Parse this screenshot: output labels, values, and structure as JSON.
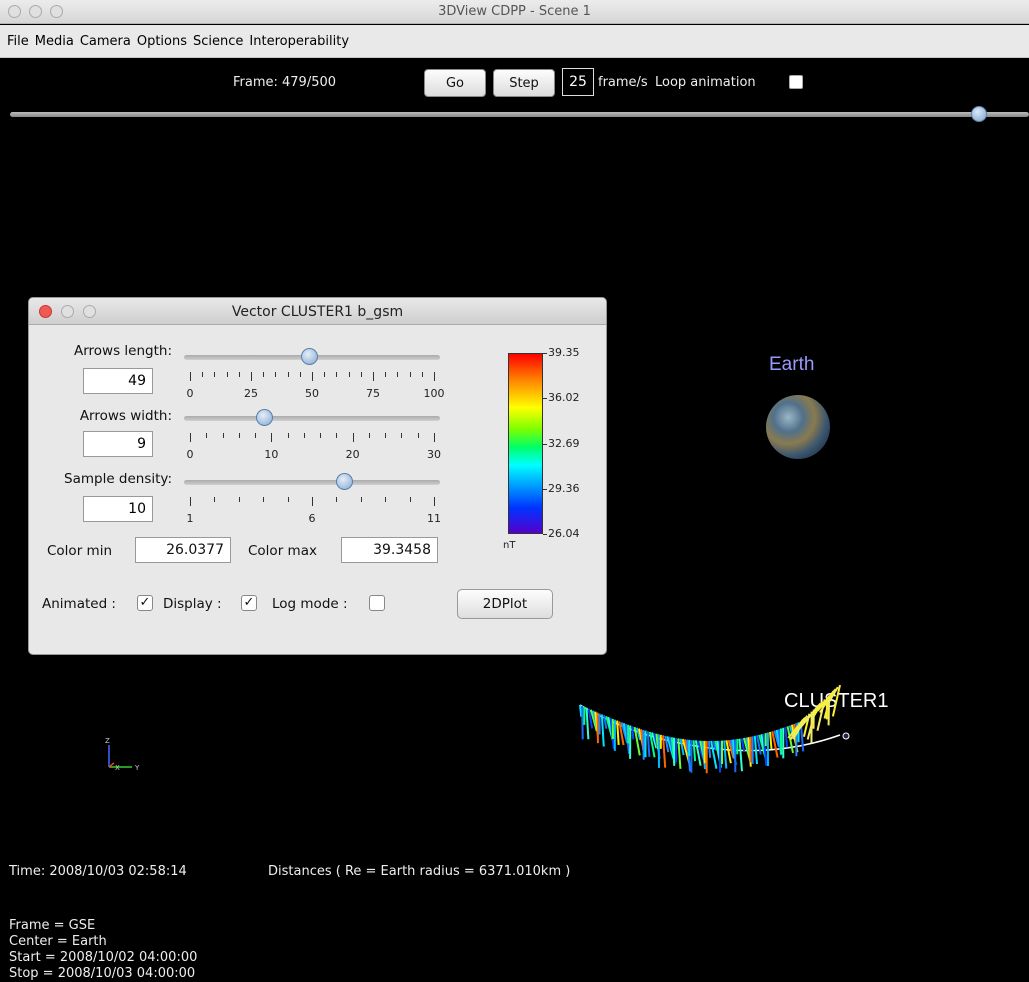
{
  "window": {
    "title": "3DView CDPP - Scene 1"
  },
  "menu": [
    "File",
    "Media",
    "Camera",
    "Options",
    "Science",
    "Interoperability"
  ],
  "toolbar": {
    "frame_text": "Frame: 479/500",
    "go_label": "Go",
    "step_label": "Step",
    "fps_value": "25",
    "fps_label": "frame/s",
    "loop_label": "Loop animation",
    "frame_progress": 0.958
  },
  "dialog": {
    "title": "Vector CLUSTER1 b_gsm",
    "arrows_length": {
      "label": "Arrows length:",
      "value": "49",
      "ticks": [
        "0",
        "25",
        "50",
        "75",
        "100"
      ]
    },
    "arrows_width": {
      "label": "Arrows width:",
      "value": "9",
      "ticks": [
        "0",
        "10",
        "20",
        "30"
      ]
    },
    "sample_density": {
      "label": "Sample density:",
      "value": "10",
      "ticks": [
        "1",
        "6",
        "11"
      ]
    },
    "color_min_label": "Color min",
    "color_min": "26.0377",
    "color_max_label": "Color max",
    "color_max": "39.3458",
    "colorbar_ticks": [
      "39.35",
      "36.02",
      "32.69",
      "29.36",
      "26.04"
    ],
    "unit": "nT",
    "animated_label": "Animated :",
    "display_label": "Display :",
    "log_label": "Log mode :",
    "check_glyph": "✓",
    "plot_button": "2DPlot"
  },
  "scene": {
    "earth_label": "Earth",
    "cluster_label": "CLUSTER1",
    "axes": {
      "z": "Z",
      "x": "X",
      "y": "Y"
    }
  },
  "info": {
    "time": "Time: 2008/10/03 02:58:14",
    "distances": "Distances ( Re = Earth radius = 6371.010km )",
    "frame": "Frame = GSE",
    "center": "Center = Earth",
    "start": "Start = 2008/10/02 04:00:00",
    "stop": "Stop = 2008/10/03 04:00:00"
  },
  "colors": {
    "earth_label": "#9999ff",
    "menu_bg": "#e9e9e9",
    "dialog_bg": "#e8e8e8"
  }
}
